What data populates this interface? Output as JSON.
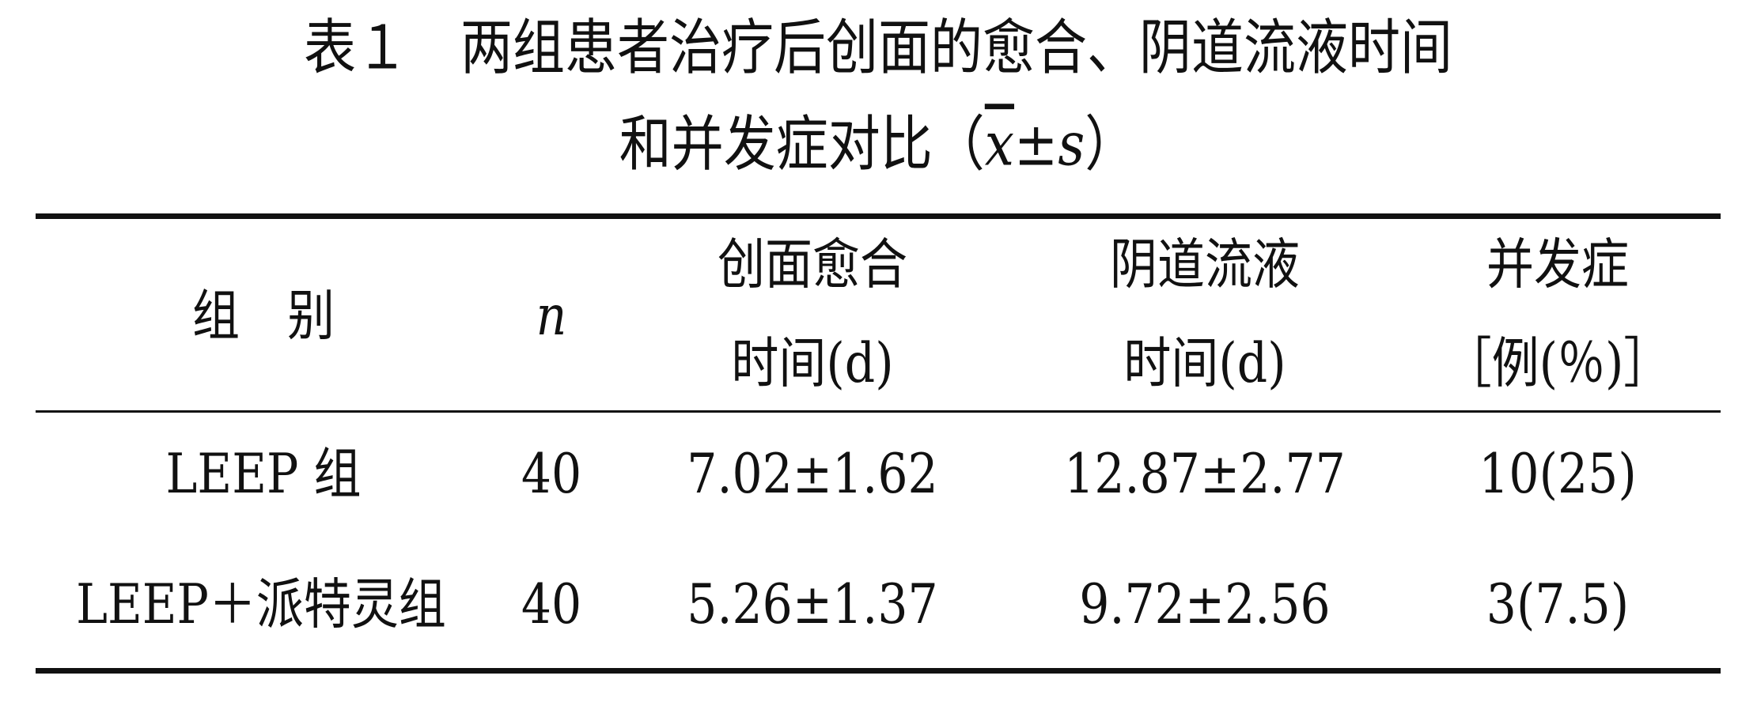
{
  "caption": {
    "line1": "表１　两组患者治疗后创面的愈合、阴道流液时间",
    "line2_prefix": "和并发症对比（",
    "line2_xbar": "x",
    "line2_mid": "±",
    "line2_s": "s",
    "line2_suffix": "）"
  },
  "table": {
    "headers": {
      "group": "组　别",
      "n": "n",
      "healing_line1": "创面愈合",
      "healing_line2": "时间(d)",
      "discharge_line1": "阴道流液",
      "discharge_line2": "时间(d)",
      "complication_line1": "并发症",
      "complication_line2": "［例(％)］"
    },
    "rows": [
      {
        "group": "LEEP 组",
        "n": "40",
        "healing": "7.02±1.62",
        "discharge": "12.87±2.77",
        "complication": "10(25)"
      },
      {
        "group": "LEEP＋派特灵组",
        "n": "40",
        "healing": "5.26±1.37",
        "discharge": "9.72±2.56",
        "complication": "3(7.5)"
      }
    ]
  }
}
